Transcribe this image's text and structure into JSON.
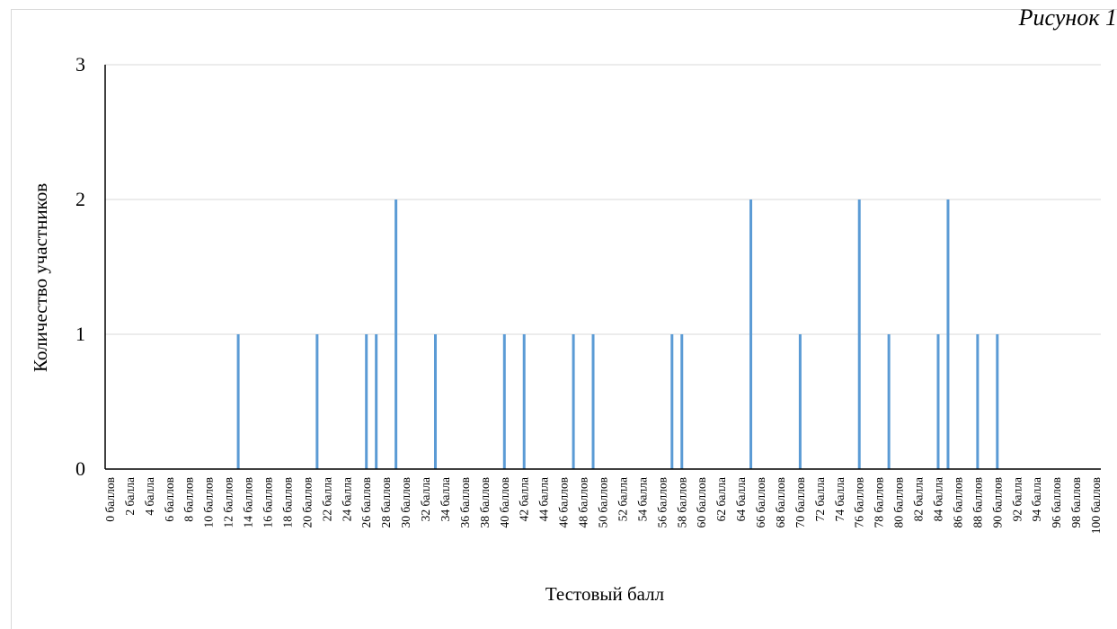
{
  "corner_caption": "Рисунок 1",
  "chart_data": {
    "type": "bar",
    "xlabel": "Тестовый балл",
    "ylabel": "Количество участников",
    "ylim": [
      0,
      3
    ],
    "yticks": [
      "0",
      "1",
      "2",
      "3"
    ],
    "grid": true,
    "bar_color": "#5b9bd5",
    "categories": [
      "0 баллов",
      "1 балл",
      "2 балла",
      "3 балла",
      "4 балла",
      "5 баллов",
      "6 баллов",
      "7 баллов",
      "8 баллов",
      "9 баллов",
      "10 баллов",
      "11 баллов",
      "12 баллов",
      "13 баллов",
      "14 баллов",
      "15 баллов",
      "16 баллов",
      "17 баллов",
      "18 баллов",
      "19 баллов",
      "20 баллов",
      "21 балл",
      "22 балла",
      "23 балла",
      "24 балла",
      "25 баллов",
      "26 баллов",
      "27 баллов",
      "28 баллов",
      "29 баллов",
      "30 баллов",
      "31 балл",
      "32 балла",
      "33 балла",
      "34 балла",
      "35 баллов",
      "36 баллов",
      "37 баллов",
      "38 баллов",
      "39 баллов",
      "40 баллов",
      "41 балл",
      "42 балла",
      "43 балла",
      "44 балла",
      "45 баллов",
      "46 баллов",
      "47 баллов",
      "48 баллов",
      "49 баллов",
      "50 баллов",
      "51 балл",
      "52 балла",
      "53 балла",
      "54 балла",
      "55 баллов",
      "56 баллов",
      "57 баллов",
      "58 баллов",
      "59 баллов",
      "60 баллов",
      "61 балл",
      "62 балла",
      "63 балла",
      "64 балла",
      "65 баллов",
      "66 баллов",
      "67 баллов",
      "68 баллов",
      "69 баллов",
      "70 баллов",
      "71 балл",
      "72 балла",
      "73 балла",
      "74 балла",
      "75 баллов",
      "76 баллов",
      "77 баллов",
      "78 баллов",
      "79 баллов",
      "80 баллов",
      "81 балл",
      "82 балла",
      "83 балла",
      "84 балла",
      "85 баллов",
      "86 баллов",
      "87 баллов",
      "88 баллов",
      "89 баллов",
      "90 баллов",
      "91 балл",
      "92 балла",
      "93 балла",
      "94 балла",
      "95 баллов",
      "96 баллов",
      "97 баллов",
      "98 баллов",
      "99 баллов",
      "100 баллов"
    ],
    "values": [
      0,
      0,
      0,
      0,
      0,
      0,
      0,
      0,
      0,
      0,
      0,
      0,
      0,
      1,
      0,
      0,
      0,
      0,
      0,
      0,
      0,
      1,
      0,
      0,
      0,
      0,
      1,
      1,
      0,
      2,
      0,
      0,
      0,
      1,
      0,
      0,
      0,
      0,
      0,
      0,
      1,
      0,
      1,
      0,
      0,
      0,
      0,
      1,
      0,
      1,
      0,
      0,
      0,
      0,
      0,
      0,
      0,
      1,
      1,
      0,
      0,
      0,
      0,
      0,
      0,
      2,
      0,
      0,
      0,
      0,
      1,
      0,
      0,
      0,
      0,
      0,
      2,
      0,
      0,
      1,
      0,
      0,
      0,
      0,
      1,
      2,
      0,
      0,
      1,
      0,
      1,
      0,
      0,
      0,
      0,
      0,
      0,
      0,
      0,
      0,
      0
    ],
    "visible_tick_labels": [
      "0 баллов",
      "2 балла",
      "4 балла",
      "6 баллов",
      "8 баллов",
      "10 баллов",
      "12 баллов",
      "14 баллов",
      "16 баллов",
      "18 баллов",
      "20 баллов",
      "22 балла",
      "24 балла",
      "26 баллов",
      "28 баллов",
      "30 баллов",
      "32 балла",
      "34 балла",
      "36 баллов",
      "38 баллов",
      "40 баллов",
      "42 балла",
      "44 балла",
      "46 баллов",
      "48 баллов",
      "50 баллов",
      "52 балла",
      "54 балла",
      "56 баллов",
      "58 баллов",
      "60 баллов",
      "62 балла",
      "64 балла",
      "66 баллов",
      "68 баллов",
      "70 баллов",
      "72 балла",
      "74 балла",
      "76 баллов",
      "78 баллов",
      "80 баллов",
      "82 балла",
      "84 балла",
      "86 баллов",
      "88 баллов",
      "90 баллов",
      "92 балла",
      "94 балла",
      "96 баллов",
      "98 баллов",
      "100 баллов"
    ]
  }
}
